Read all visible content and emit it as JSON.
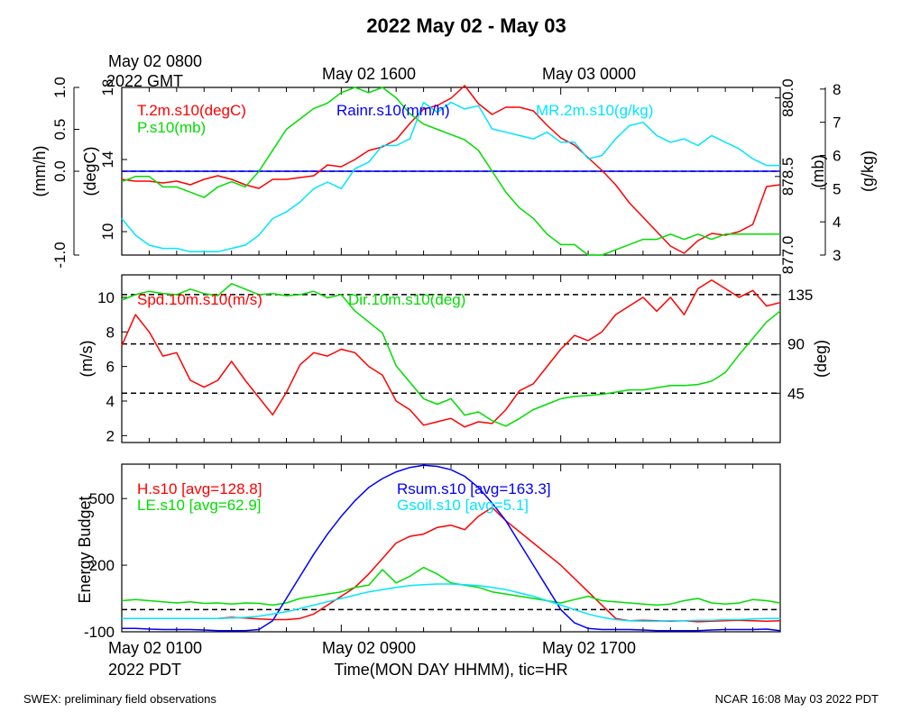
{
  "title": "2022 May 02 - May 03",
  "top_left_time": {
    "line1": "May 02 0800",
    "line2": "2022 GMT"
  },
  "top_time_labels": [
    "May 02 1600",
    "May 03 0000"
  ],
  "bottom_time_labels": [
    "May 02 0900",
    "May 02 1700"
  ],
  "bottom_left_time": {
    "line1": "May 02 0100",
    "line2": "2022 PDT"
  },
  "xlabel": "Time(MON DAY HHMM), tic=HR",
  "footer_left": "SWEX: preliminary field observations",
  "footer_right": "NCAR 16:08 May 03 2022 PDT",
  "colors": {
    "red": "#ff0000",
    "green": "#00dd00",
    "blue": "#0000ff",
    "cyan": "#00e5ff",
    "black": "#000000"
  },
  "chart_data": [
    {
      "type": "line",
      "panel": "top",
      "x_range_hours_pdt": [
        1,
        25
      ],
      "axes": {
        "rain": {
          "label": "(mm/h)",
          "ticks": [
            "-1.0",
            "0.0",
            "0.5",
            "1.0"
          ],
          "range": [
            -1,
            1
          ]
        },
        "temp": {
          "label": "(degC)",
          "ticks": [
            "10",
            "14",
            "18"
          ],
          "range": [
            8.7,
            18
          ]
        },
        "pres": {
          "label": "(mb)",
          "ticks": [
            "877.0",
            "878.5",
            "880.0"
          ],
          "range": [
            877,
            880.2
          ]
        },
        "mr": {
          "label": "(g/kg)",
          "ticks": [
            "3",
            "4",
            "5",
            "6",
            "7",
            "8"
          ],
          "range": [
            3,
            8.05
          ]
        }
      },
      "hlines": [
        {
          "axis": "rain",
          "y": 0.0,
          "style": "dashed"
        },
        {
          "axis": "rain",
          "y": 0.0,
          "style": "solid",
          "color": "blue"
        }
      ],
      "series": [
        {
          "name": "T.2m.s10(degC)",
          "axis": "temp",
          "color": "red",
          "x": [
            1,
            1.5,
            2,
            2.5,
            3,
            3.5,
            4,
            4.5,
            5,
            5.5,
            6,
            6.5,
            7,
            7.5,
            8,
            8.5,
            9,
            9.5,
            10,
            10.5,
            11,
            11.5,
            12,
            12.5,
            13,
            13.5,
            14,
            14.5,
            15,
            15.5,
            16,
            16.5,
            17,
            17.5,
            18,
            18.5,
            19,
            19.5,
            20,
            20.5,
            21,
            21.5,
            22,
            22.5,
            23,
            23.5,
            24,
            24.5,
            25
          ],
          "y": [
            12.9,
            12.8,
            12.8,
            12.7,
            12.8,
            12.6,
            12.9,
            13.1,
            12.9,
            12.6,
            12.4,
            12.9,
            12.9,
            13.0,
            13.1,
            13.7,
            13.6,
            14.0,
            14.5,
            14.7,
            15.1,
            16.0,
            16.8,
            17.0,
            17.4,
            18.1,
            17.1,
            16.5,
            16.9,
            16.9,
            16.7,
            15.9,
            15.2,
            14.8,
            14.1,
            13.4,
            12.6,
            11.6,
            10.8,
            10.0,
            9.2,
            8.8,
            9.5,
            9.9,
            9.8,
            10.0,
            10.4,
            12.5,
            12.6
          ]
        },
        {
          "name": "P.s10(mb)",
          "axis": "pres",
          "color": "green",
          "x": [
            1,
            1.5,
            2,
            2.5,
            3,
            3.5,
            4,
            4.5,
            5,
            5.5,
            6,
            6.5,
            7,
            7.5,
            8,
            8.5,
            9,
            9.5,
            10,
            10.5,
            11,
            11.5,
            12,
            12.5,
            13,
            13.5,
            14,
            14.5,
            15,
            15.5,
            16,
            16.5,
            17,
            17.5,
            18,
            18.5,
            19,
            19.5,
            20,
            20.5,
            21,
            21.5,
            22,
            22.5,
            23,
            23.5,
            24,
            24.5,
            25
          ],
          "y": [
            878.4,
            878.5,
            878.5,
            878.3,
            878.3,
            878.2,
            878.1,
            878.3,
            878.4,
            878.3,
            878.6,
            879.0,
            879.4,
            879.6,
            879.8,
            879.9,
            880.1,
            880.2,
            880.1,
            880.2,
            880.0,
            879.7,
            879.5,
            879.4,
            879.3,
            879.2,
            879.0,
            878.6,
            878.2,
            877.9,
            877.7,
            877.4,
            877.2,
            877.2,
            877.0,
            877.0,
            877.1,
            877.2,
            877.3,
            877.3,
            877.4,
            877.3,
            877.4,
            877.3,
            877.4,
            877.4,
            877.4,
            877.4,
            877.4
          ]
        },
        {
          "name": "MR.2m.s10(g/kg)",
          "axis": "mr",
          "color": "cyan",
          "x": [
            1,
            1.5,
            2,
            2.5,
            3,
            3.5,
            4,
            4.5,
            5,
            5.5,
            6,
            6.5,
            7,
            7.5,
            8,
            8.5,
            9,
            9.5,
            10,
            10.5,
            11,
            11.5,
            12,
            12.5,
            13,
            13.5,
            14,
            14.5,
            15,
            15.5,
            16,
            16.5,
            17,
            17.5,
            18,
            18.5,
            19,
            19.5,
            20,
            20.5,
            21,
            21.5,
            22,
            22.5,
            23,
            23.5,
            24,
            24.5,
            25
          ],
          "y": [
            4.1,
            3.6,
            3.3,
            3.2,
            3.2,
            3.1,
            3.1,
            3.1,
            3.2,
            3.3,
            3.6,
            4.1,
            4.3,
            4.6,
            5.0,
            5.2,
            5.0,
            5.6,
            5.8,
            6.3,
            6.3,
            6.5,
            7.6,
            7.3,
            7.6,
            7.4,
            7.5,
            6.8,
            6.7,
            6.6,
            6.5,
            6.7,
            6.4,
            6.4,
            5.9,
            6.0,
            6.5,
            6.9,
            7.0,
            6.6,
            6.4,
            6.5,
            6.3,
            6.6,
            6.4,
            6.2,
            5.9,
            5.7,
            5.7
          ]
        }
      ]
    },
    {
      "type": "line",
      "panel": "middle",
      "x_range_hours_pdt": [
        1,
        25
      ],
      "axes": {
        "spd": {
          "label": "(m/s)",
          "ticks": [
            "2",
            "4",
            "6",
            "8",
            "10"
          ],
          "range": [
            1.6,
            11.3
          ]
        },
        "dir": {
          "label": "(deg)",
          "ticks": [
            "45",
            "90",
            "135"
          ],
          "range": [
            0,
            153
          ]
        }
      },
      "hlines": [
        {
          "axis": "dir",
          "y": 45,
          "style": "dashed"
        },
        {
          "axis": "dir",
          "y": 90,
          "style": "dashed"
        },
        {
          "axis": "dir",
          "y": 135,
          "style": "dashed"
        }
      ],
      "series": [
        {
          "name": "Spd.10m.s10(m/s)",
          "axis": "spd",
          "color": "red",
          "x": [
            1,
            1.5,
            2,
            2.5,
            3,
            3.5,
            4,
            4.5,
            5,
            5.5,
            6,
            6.5,
            7,
            7.5,
            8,
            8.5,
            9,
            9.5,
            10,
            10.5,
            11,
            11.5,
            12,
            12.5,
            13,
            13.5,
            14,
            14.5,
            15,
            15.5,
            16,
            16.5,
            17,
            17.5,
            18,
            18.5,
            19,
            19.5,
            20,
            20.5,
            21,
            21.5,
            22,
            22.5,
            23,
            23.5,
            24,
            24.5,
            25
          ],
          "y": [
            7.2,
            9.0,
            8.0,
            6.6,
            6.8,
            5.2,
            4.8,
            5.2,
            6.3,
            5.2,
            4.2,
            3.2,
            4.5,
            6.1,
            6.8,
            6.6,
            7.0,
            6.8,
            6.0,
            5.5,
            4.0,
            3.5,
            2.6,
            2.8,
            3.0,
            2.5,
            2.8,
            2.7,
            3.5,
            4.6,
            5.0,
            6.0,
            7.0,
            7.8,
            7.5,
            8.0,
            9.0,
            9.5,
            10.0,
            9.2,
            10.0,
            9.0,
            10.5,
            11.0,
            10.5,
            10.0,
            10.4,
            9.5,
            9.7
          ]
        },
        {
          "name": "Dir.10m.s10(deg)",
          "axis": "dir",
          "color": "green",
          "x": [
            1,
            1.5,
            2,
            2.5,
            3,
            3.5,
            4,
            4.5,
            5,
            5.5,
            6,
            6.5,
            7,
            7.5,
            8,
            8.5,
            9,
            9.5,
            10,
            10.5,
            11,
            11.5,
            12,
            12.5,
            13,
            13.5,
            14,
            14.5,
            15,
            15.5,
            16,
            16.5,
            17,
            17.5,
            18,
            18.5,
            19,
            19.5,
            20,
            20.5,
            21,
            21.5,
            22,
            22.5,
            23,
            23.5,
            24,
            24.5,
            25
          ],
          "y": [
            130,
            135,
            138,
            136,
            135,
            140,
            136,
            134,
            145,
            140,
            135,
            136,
            134,
            135,
            138,
            132,
            135,
            120,
            110,
            100,
            70,
            55,
            40,
            35,
            40,
            25,
            28,
            20,
            15,
            22,
            30,
            35,
            40,
            42,
            43,
            44,
            46,
            48,
            48,
            50,
            52,
            52,
            53,
            56,
            64,
            80,
            95,
            110,
            120
          ]
        }
      ]
    },
    {
      "type": "line",
      "panel": "bottom",
      "x_range_hours_pdt": [
        1,
        25
      ],
      "axes": {
        "energy": {
          "label": "Energy Budget",
          "ticks": [
            "-100",
            "200",
            "500"
          ],
          "range": [
            -100,
            655
          ]
        }
      },
      "hlines": [
        {
          "axis": "energy",
          "y": 0,
          "style": "dashed"
        }
      ],
      "series": [
        {
          "name": "H.s10 [avg=128.8]",
          "axis": "energy",
          "color": "red",
          "x": [
            4,
            4.5,
            5,
            5.5,
            6,
            6.5,
            7,
            7.5,
            8,
            8.5,
            9,
            9.5,
            10,
            10.5,
            11,
            11.5,
            12,
            12.5,
            13,
            13.5,
            14,
            14.5,
            15,
            15.5,
            16,
            16.5,
            17,
            17.5,
            18,
            18.5,
            19,
            19.5,
            20,
            20.5,
            21,
            21.5,
            22,
            22.5,
            23,
            23.5,
            24,
            24.5,
            25
          ],
          "y": [
            -40,
            -40,
            -35,
            -38,
            -42,
            -45,
            -45,
            -40,
            -20,
            20,
            60,
            100,
            160,
            230,
            300,
            330,
            340,
            370,
            380,
            360,
            420,
            460,
            400,
            350,
            300,
            250,
            200,
            140,
            80,
            20,
            -40,
            -50,
            -48,
            -50,
            -52,
            -50,
            -55,
            -52,
            -50,
            -48,
            -50,
            -52,
            -50
          ]
        },
        {
          "name": "LE.s10 [avg=62.9]",
          "axis": "energy",
          "color": "green",
          "x": [
            1,
            1.5,
            2,
            2.5,
            3,
            3.5,
            4,
            4.5,
            5,
            5.5,
            6,
            6.5,
            7,
            7.5,
            8,
            8.5,
            9,
            9.5,
            10,
            10.5,
            11,
            11.5,
            12,
            12.5,
            13,
            13.5,
            14,
            14.5,
            15,
            15.5,
            16,
            16.5,
            17,
            17.5,
            18,
            18.5,
            19,
            19.5,
            20,
            20.5,
            21,
            21.5,
            22,
            22.5,
            23,
            23.5,
            24,
            24.5,
            25
          ],
          "y": [
            40,
            45,
            40,
            35,
            30,
            35,
            28,
            30,
            25,
            30,
            28,
            20,
            30,
            50,
            60,
            70,
            80,
            100,
            110,
            180,
            120,
            150,
            190,
            160,
            120,
            110,
            100,
            80,
            70,
            60,
            50,
            40,
            30,
            45,
            60,
            40,
            35,
            30,
            25,
            20,
            25,
            40,
            50,
            30,
            25,
            30,
            45,
            40,
            30
          ]
        },
        {
          "name": "Rsum.s10 [avg=163.3]",
          "axis": "energy",
          "color": "blue",
          "x": [
            1,
            1.5,
            2,
            2.5,
            3,
            3.5,
            4,
            4.5,
            5,
            5.5,
            6,
            6.5,
            7,
            7.5,
            8,
            8.5,
            9,
            9.5,
            10,
            10.5,
            11,
            11.5,
            12,
            12.5,
            13,
            13.5,
            14,
            14.5,
            15,
            15.5,
            16,
            16.5,
            17,
            17.5,
            18,
            18.5,
            19,
            19.5,
            20,
            20.5,
            21,
            21.5,
            22,
            22.5,
            23,
            23.5,
            24,
            24.5,
            25
          ],
          "y": [
            -85,
            -85,
            -88,
            -90,
            -90,
            -90,
            -92,
            -95,
            -95,
            -95,
            -90,
            -50,
            50,
            150,
            250,
            340,
            420,
            490,
            550,
            590,
            620,
            640,
            650,
            645,
            630,
            600,
            550,
            480,
            400,
            300,
            200,
            100,
            0,
            -60,
            -85,
            -90,
            -90,
            -90,
            -92,
            -95,
            -95,
            -95,
            -95,
            -92,
            -90,
            -90,
            -90,
            -88,
            -95
          ]
        },
        {
          "name": "Gsoil.s10 [avg=5.1]",
          "axis": "energy",
          "color": "cyan",
          "x": [
            1,
            1.5,
            2,
            2.5,
            3,
            3.5,
            4,
            4.5,
            5,
            5.5,
            6,
            6.5,
            7,
            7.5,
            8,
            8.5,
            9,
            9.5,
            10,
            10.5,
            11,
            11.5,
            12,
            12.5,
            13,
            13.5,
            14,
            14.5,
            15,
            15.5,
            16,
            16.5,
            17,
            17.5,
            18,
            18.5,
            19,
            19.5,
            20,
            20.5,
            21,
            21.5,
            22,
            22.5,
            23,
            23.5,
            24,
            24.5,
            25
          ],
          "y": [
            -40,
            -40,
            -40,
            -40,
            -40,
            -40,
            -40,
            -40,
            -38,
            -35,
            -30,
            -20,
            -10,
            5,
            20,
            35,
            50,
            65,
            80,
            90,
            100,
            108,
            112,
            115,
            115,
            112,
            108,
            100,
            90,
            75,
            60,
            40,
            20,
            0,
            -20,
            -35,
            -45,
            -50,
            -52,
            -52,
            -50,
            -50,
            -48,
            -48,
            -45,
            -45,
            -42,
            -40,
            -40
          ]
        }
      ]
    }
  ]
}
